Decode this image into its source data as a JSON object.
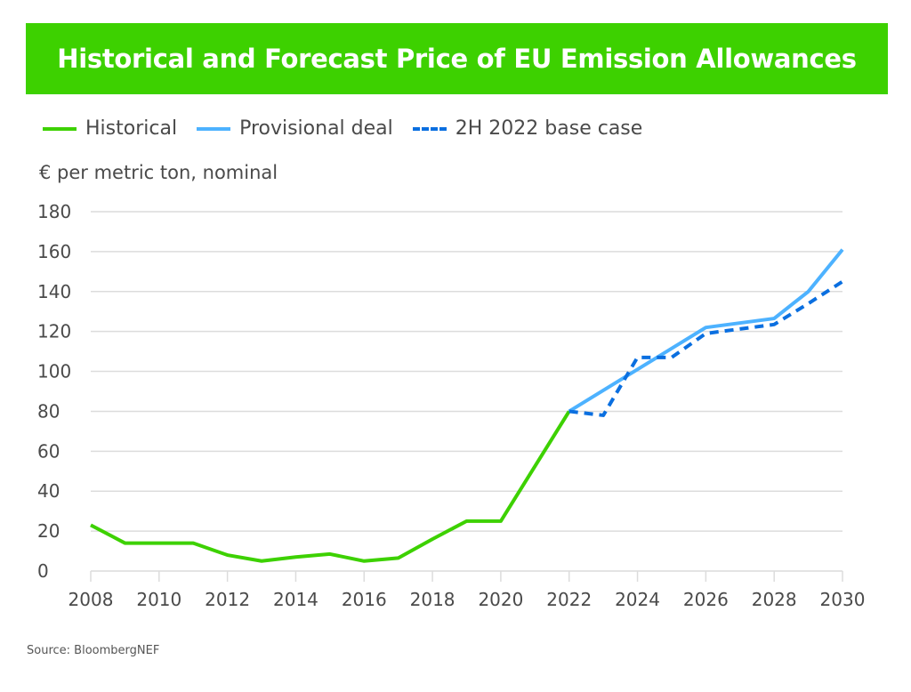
{
  "chart_data": {
    "type": "line",
    "title": "Historical and Forecast Price of EU Emission Allowances",
    "ylabel": "€ per metric ton, nominal",
    "xlabel": "",
    "source": "Source: BloombergNEF",
    "xlim": [
      2008,
      2030
    ],
    "ylim": [
      0,
      180
    ],
    "x_ticks": [
      "2008",
      "2010",
      "2012",
      "2014",
      "2016",
      "2018",
      "2020",
      "2022",
      "2024",
      "2026",
      "2028",
      "2030"
    ],
    "y_ticks": [
      "0",
      "20",
      "40",
      "60",
      "80",
      "100",
      "120",
      "140",
      "160",
      "180"
    ],
    "grid": "horizontal",
    "legend_position": "top-left",
    "series": [
      {
        "name": "Historical",
        "color": "#3dd100",
        "dash": false,
        "x": [
          2008,
          2009,
          2010,
          2011,
          2012,
          2013,
          2014,
          2015,
          2016,
          2017,
          2018,
          2019,
          2020,
          2022
        ],
        "y": [
          23,
          14,
          14,
          14,
          8,
          5,
          7,
          8.5,
          5,
          6.5,
          16,
          25,
          25,
          80
        ]
      },
      {
        "name": "Provisional deal",
        "color": "#4db2ff",
        "dash": false,
        "x": [
          2022,
          2024,
          2026,
          2028,
          2029,
          2030
        ],
        "y": [
          80,
          101,
          122,
          126.5,
          140,
          161
        ]
      },
      {
        "name": "2H 2022 base case",
        "color": "#0a6fe0",
        "dash": true,
        "x": [
          2022,
          2023,
          2024,
          2025,
          2026,
          2028,
          2029,
          2030
        ],
        "y": [
          80,
          78,
          107,
          107,
          119,
          123.5,
          134,
          145
        ]
      }
    ]
  }
}
